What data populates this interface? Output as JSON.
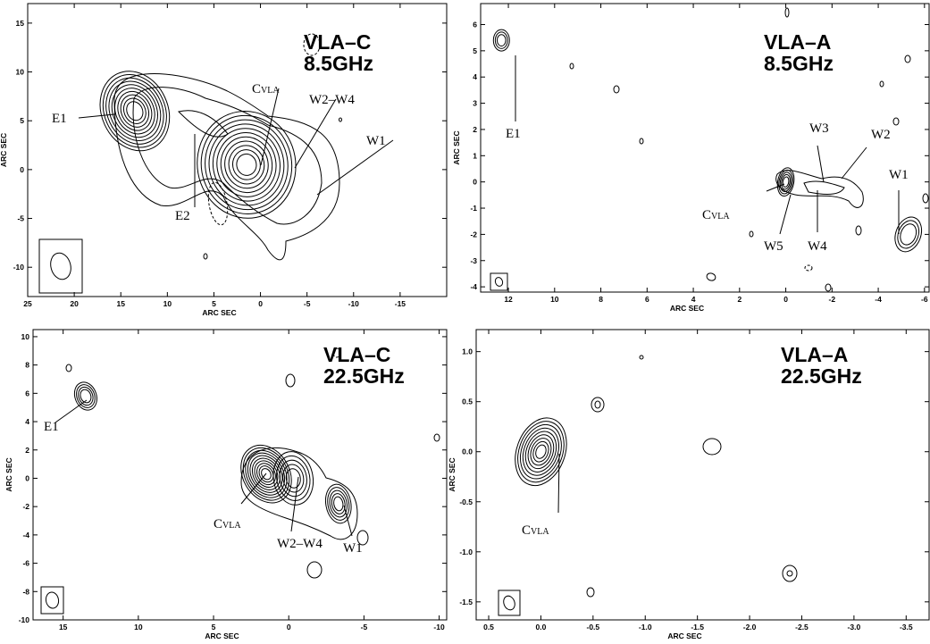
{
  "chart_data": [
    {
      "type": "contour",
      "title_lines": [
        "VLA–C",
        "8.5GHz"
      ],
      "xlabel": "ARC SEC",
      "ylabel": "ARC SEC",
      "xlim": [
        25,
        -20
      ],
      "ylim": [
        -13,
        17
      ],
      "xticks": [
        25,
        20,
        15,
        10,
        5,
        0,
        -5,
        -10,
        -15
      ],
      "yticks": [
        -10,
        -5,
        0,
        5,
        10,
        15
      ],
      "sources": [
        {
          "name": "E1",
          "x": 13.5,
          "y": 6
        },
        {
          "name": "E2",
          "x": 8.5,
          "y": 5
        },
        {
          "name": "C",
          "sub": "VLA",
          "x": 1.5,
          "y": 0.5
        },
        {
          "name": "W2–W4",
          "x": -2,
          "y": 1.5
        },
        {
          "name": "W1",
          "x": -5,
          "y": -2
        }
      ]
    },
    {
      "type": "contour",
      "title_lines": [
        "VLA–A",
        "8.5GHz"
      ],
      "xlabel": "ARC SEC",
      "ylabel": "ARC SEC",
      "xlim": [
        13.2,
        -6.2
      ],
      "ylim": [
        -4.2,
        6.8
      ],
      "xticks": [
        12,
        10,
        8,
        6,
        4,
        2,
        0,
        -2,
        -4,
        -6
      ],
      "yticks": [
        -4,
        -3,
        -2,
        -1,
        0,
        1,
        2,
        3,
        4,
        5,
        6
      ],
      "sources": [
        {
          "name": "E1",
          "x": 12.3,
          "y": 5.4
        },
        {
          "name": "C",
          "sub": "VLA",
          "x": 0,
          "y": 0
        },
        {
          "name": "W5",
          "x": -0.5,
          "y": -0.2
        },
        {
          "name": "W4",
          "x": -1.3,
          "y": -0.1
        },
        {
          "name": "W3",
          "x": -1.8,
          "y": 0.1
        },
        {
          "name": "W2",
          "x": -2.6,
          "y": 0
        },
        {
          "name": "W1",
          "x": -5.3,
          "y": -2
        }
      ]
    },
    {
      "type": "contour",
      "title_lines": [
        "VLA–C",
        "22.5GHz"
      ],
      "xlabel": "ARC SEC",
      "ylabel": "ARC SEC",
      "xlim": [
        17,
        -10.5
      ],
      "ylim": [
        -10,
        10.5
      ],
      "xticks": [
        15,
        10,
        5,
        0,
        -5,
        -10
      ],
      "yticks": [
        -10,
        -8,
        -6,
        -4,
        -2,
        0,
        2,
        4,
        6,
        8,
        10
      ],
      "sources": [
        {
          "name": "E1",
          "x": 13.5,
          "y": 5.8
        },
        {
          "name": "C",
          "sub": "VLA",
          "x": 1.5,
          "y": 0.3
        },
        {
          "name": "W2–W4",
          "x": -0.3,
          "y": 0
        },
        {
          "name": "W1",
          "x": -3.3,
          "y": -1.8
        }
      ]
    },
    {
      "type": "contour",
      "title_lines": [
        "VLA–A",
        "22.5GHz"
      ],
      "xlabel": "ARC SEC",
      "ylabel": "ARC SEC",
      "xlim": [
        0.62,
        -3.72
      ],
      "ylim": [
        -1.68,
        1.22
      ],
      "xticks": [
        0.5,
        0.0,
        -0.5,
        -1.0,
        -1.5,
        -2.0,
        -2.5,
        -3.0,
        -3.5
      ],
      "ytick_labels": [
        "1.0",
        "0.5",
        "0.0",
        "-0.5",
        "-1.0",
        "-1.5"
      ],
      "yticks": [
        1.0,
        0.5,
        0.0,
        -0.5,
        -1.0,
        -1.5
      ],
      "sources": [
        {
          "name": "C",
          "sub": "VLA",
          "x": 0,
          "y": 0
        }
      ]
    }
  ],
  "xtick_labels_0": [
    "25",
    "20",
    "15",
    "10",
    "5",
    "0",
    "-5",
    "-10",
    "-15"
  ],
  "xtick_labels_3": [
    "0.5",
    "0.0",
    "-0.5",
    "-1.0",
    "-1.5",
    "-2.0",
    "-2.5",
    "-3.0",
    "-3.5"
  ]
}
